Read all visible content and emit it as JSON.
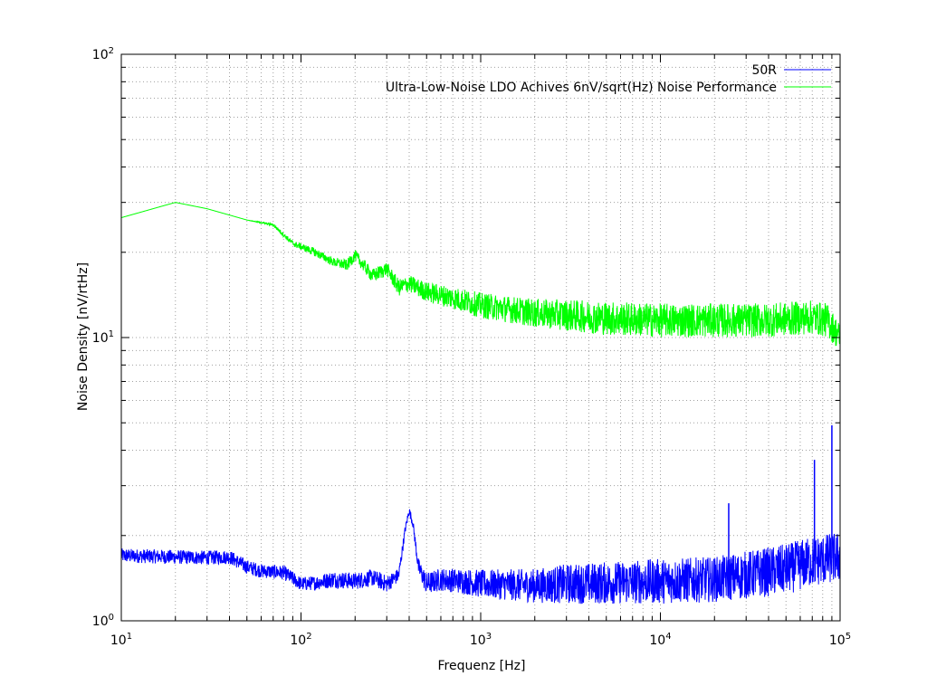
{
  "chart_data": {
    "type": "line",
    "x_scale": "log",
    "y_scale": "log",
    "xlim": [
      10,
      100000
    ],
    "ylim": [
      1,
      100
    ],
    "xlabel": "Frequenz [Hz]",
    "ylabel": "Noise Density [nV/rtHz]",
    "grid": true,
    "legend_position": "top-right",
    "x_ticks": [
      {
        "base": "10",
        "exp": "1"
      },
      {
        "base": "10",
        "exp": "2"
      },
      {
        "base": "10",
        "exp": "3"
      },
      {
        "base": "10",
        "exp": "4"
      },
      {
        "base": "10",
        "exp": "5"
      }
    ],
    "y_ticks": [
      {
        "base": "10",
        "exp": "0"
      },
      {
        "base": "10",
        "exp": "1"
      },
      {
        "base": "10",
        "exp": "2"
      }
    ],
    "series": [
      {
        "name": "50R",
        "color": "#0000ff",
        "points": [
          [
            10,
            1.7
          ],
          [
            20,
            1.68
          ],
          [
            30,
            1.67
          ],
          [
            40,
            1.68
          ],
          [
            50,
            1.55
          ],
          [
            60,
            1.5
          ],
          [
            80,
            1.48
          ],
          [
            100,
            1.35
          ],
          [
            120,
            1.36
          ],
          [
            150,
            1.4
          ],
          [
            200,
            1.38
          ],
          [
            250,
            1.42
          ],
          [
            300,
            1.35
          ],
          [
            350,
            1.45
          ],
          [
            380,
            2.1
          ],
          [
            400,
            2.45
          ],
          [
            420,
            2.2
          ],
          [
            450,
            1.55
          ],
          [
            500,
            1.35
          ],
          [
            600,
            1.4
          ],
          [
            800,
            1.38
          ],
          [
            1000,
            1.35
          ],
          [
            2000,
            1.33
          ],
          [
            3000,
            1.35
          ],
          [
            5000,
            1.36
          ],
          [
            10000,
            1.38
          ],
          [
            20000,
            1.4
          ],
          [
            30000,
            1.45
          ],
          [
            50000,
            1.52
          ],
          [
            70000,
            1.62
          ],
          [
            100000,
            1.68
          ]
        ],
        "noise": [
          0.05,
          0.05,
          0.05,
          0.05,
          0.05,
          0.05,
          0.05,
          0.05,
          0.05,
          0.06,
          0.06,
          0.06,
          0.06,
          0.05,
          0.03,
          0.03,
          0.03,
          0.06,
          0.08,
          0.08,
          0.09,
          0.1,
          0.12,
          0.14,
          0.15,
          0.16,
          0.16,
          0.17,
          0.18,
          0.18,
          0.18
        ],
        "spikes": [
          [
            24000,
            2.6
          ],
          [
            72000,
            3.7
          ],
          [
            90000,
            4.9
          ]
        ]
      },
      {
        "name": "Ultra-Low-Noise LDO Achives 6nV/sqrt(Hz) Noise Performance",
        "color": "#00ff00",
        "points": [
          [
            10,
            26.5
          ],
          [
            20,
            30.0
          ],
          [
            30,
            28.5
          ],
          [
            50,
            26.0
          ],
          [
            70,
            25.0
          ],
          [
            90,
            21.5
          ],
          [
            120,
            20.0
          ],
          [
            150,
            18.5
          ],
          [
            180,
            18.0
          ],
          [
            200,
            19.5
          ],
          [
            250,
            16.5
          ],
          [
            300,
            17.5
          ],
          [
            350,
            15.0
          ],
          [
            400,
            15.5
          ],
          [
            500,
            14.5
          ],
          [
            700,
            13.8
          ],
          [
            1000,
            13.0
          ],
          [
            2000,
            12.2
          ],
          [
            3000,
            12.0
          ],
          [
            5000,
            11.7
          ],
          [
            10000,
            11.5
          ],
          [
            20000,
            11.5
          ],
          [
            40000,
            11.5
          ],
          [
            70000,
            11.8
          ],
          [
            85000,
            11.5
          ],
          [
            100000,
            10.0
          ]
        ],
        "noise": [
          0.0,
          0.0,
          0.0,
          0.0,
          0.01,
          0.02,
          0.03,
          0.03,
          0.04,
          0.04,
          0.05,
          0.05,
          0.06,
          0.06,
          0.07,
          0.08,
          0.09,
          0.1,
          0.11,
          0.12,
          0.12,
          0.12,
          0.12,
          0.12,
          0.12,
          0.1
        ],
        "spikes": []
      }
    ]
  }
}
